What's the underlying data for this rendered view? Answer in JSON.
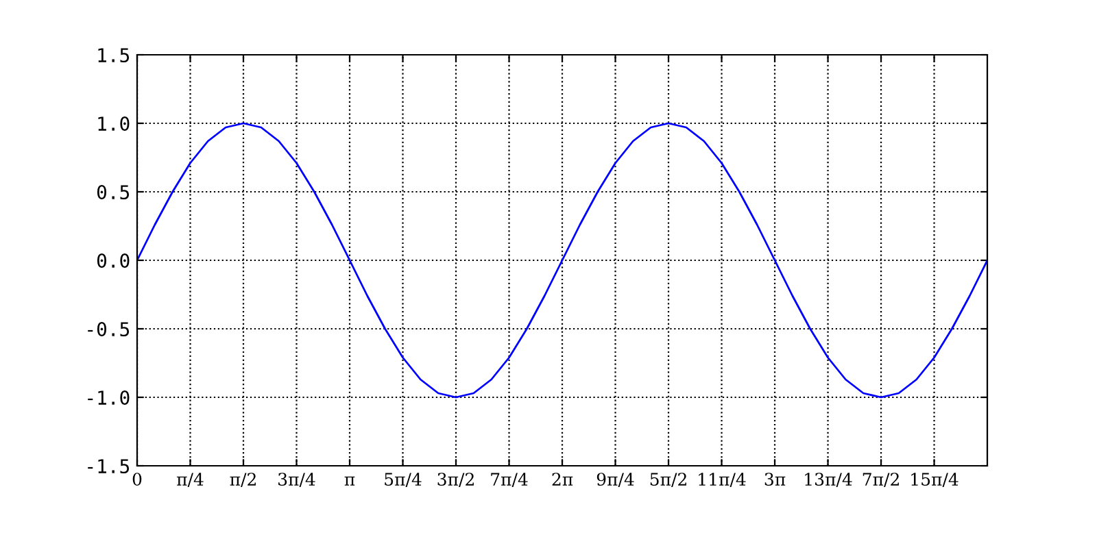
{
  "chart_data": {
    "type": "line",
    "x": [
      0,
      0.262,
      0.524,
      0.785,
      1.047,
      1.309,
      1.571,
      1.833,
      2.094,
      2.356,
      2.618,
      2.88,
      3.142,
      3.403,
      3.665,
      3.927,
      4.189,
      4.451,
      4.712,
      4.974,
      5.236,
      5.498,
      5.76,
      6.021,
      6.283,
      6.545,
      6.807,
      7.069,
      7.33,
      7.592,
      7.854,
      8.116,
      8.378,
      8.639,
      8.901,
      9.163,
      9.425,
      9.687,
      9.948,
      10.21,
      10.472,
      10.734,
      10.996,
      11.257,
      11.519,
      11.781,
      12.043,
      12.305,
      12.566
    ],
    "series": [
      {
        "color": "#0000ff",
        "values": [
          0,
          0.26,
          0.5,
          0.71,
          0.87,
          0.97,
          1,
          0.97,
          0.87,
          0.71,
          0.5,
          0.26,
          0,
          -0.26,
          -0.5,
          -0.71,
          -0.87,
          -0.97,
          -1,
          -0.97,
          -0.87,
          -0.71,
          -0.5,
          -0.26,
          0,
          0.26,
          0.5,
          0.71,
          0.87,
          0.97,
          1,
          0.97,
          0.87,
          0.71,
          0.5,
          0.26,
          0,
          -0.26,
          -0.5,
          -0.71,
          -0.87,
          -0.97,
          -1,
          -0.97,
          -0.87,
          -0.71,
          -0.5,
          -0.26,
          0
        ]
      }
    ],
    "xlim": [
      0,
      12.566
    ],
    "ylim": [
      -1.5,
      1.5
    ],
    "xticks": [
      0,
      {
        "value": 0.7854,
        "label": "π/4"
      },
      {
        "value": 1.5708,
        "label": "π/2"
      },
      {
        "value": 2.3562,
        "label": "3π/4"
      },
      {
        "value": 3.1416,
        "label": "π"
      },
      {
        "value": 3.927,
        "label": "5π/4"
      },
      {
        "value": 4.7124,
        "label": "3π/2"
      },
      {
        "value": 5.4978,
        "label": "7π/4"
      },
      {
        "value": 6.2832,
        "label": "2π"
      },
      {
        "value": 7.0686,
        "label": "9π/4"
      },
      {
        "value": 7.854,
        "label": "5π/2"
      },
      {
        "value": 8.6394,
        "label": "11π/4"
      },
      {
        "value": 9.4248,
        "label": "3π"
      },
      {
        "value": 10.2102,
        "label": "13π/4"
      },
      {
        "value": 10.9956,
        "label": "7π/2"
      },
      {
        "value": 11.781,
        "label": "15π/4"
      }
    ],
    "yticks": [
      -1.5,
      {
        "value": -1,
        "label": "-1.0"
      },
      -0.5,
      {
        "value": 0,
        "label": "0.0"
      },
      0.5,
      {
        "value": 1,
        "label": "1.0"
      },
      1.5
    ],
    "grid": true,
    "marker": "none",
    "line_style": "solid",
    "legend": false
  }
}
